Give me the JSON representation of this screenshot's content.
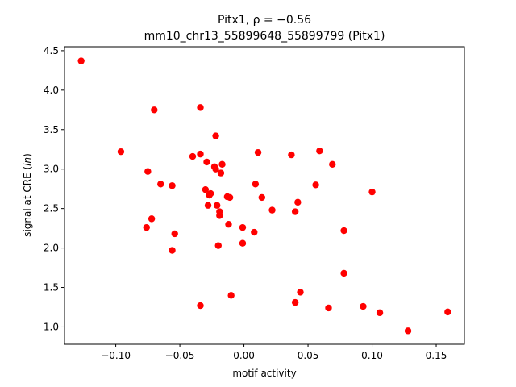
{
  "chart_data": {
    "type": "scatter",
    "title_line1": "Pitx1, ρ = −0.56",
    "title_line2": "mm10_chr13_55899648_55899799 (Pitx1)",
    "xlabel": "motif activity",
    "ylabel": "signal at CRE (ln)",
    "xlim": [
      -0.14,
      0.172
    ],
    "ylim": [
      0.78,
      4.55
    ],
    "xticks": [
      -0.1,
      -0.05,
      0.0,
      0.05,
      0.1,
      0.15
    ],
    "xtick_labels": [
      "−0.10",
      "−0.05",
      "0.00",
      "0.05",
      "0.10",
      "0.15"
    ],
    "yticks": [
      1.0,
      1.5,
      2.0,
      2.5,
      3.0,
      3.5,
      4.0,
      4.5
    ],
    "ytick_labels": [
      "1.0",
      "1.5",
      "2.0",
      "2.5",
      "3.0",
      "3.5",
      "4.0",
      "4.5"
    ],
    "grid": false,
    "marker_color": "#ff0000",
    "points": [
      {
        "x": -0.127,
        "y": 4.37
      },
      {
        "x": -0.096,
        "y": 3.22
      },
      {
        "x": -0.07,
        "y": 3.75
      },
      {
        "x": -0.034,
        "y": 3.78
      },
      {
        "x": -0.075,
        "y": 2.97
      },
      {
        "x": -0.065,
        "y": 2.81
      },
      {
        "x": -0.056,
        "y": 2.79
      },
      {
        "x": -0.072,
        "y": 2.37
      },
      {
        "x": -0.076,
        "y": 2.26
      },
      {
        "x": -0.054,
        "y": 2.18
      },
      {
        "x": -0.056,
        "y": 1.97
      },
      {
        "x": -0.04,
        "y": 3.16
      },
      {
        "x": -0.034,
        "y": 3.19
      },
      {
        "x": -0.029,
        "y": 3.09
      },
      {
        "x": -0.023,
        "y": 3.03
      },
      {
        "x": -0.022,
        "y": 3.0
      },
      {
        "x": -0.017,
        "y": 3.06
      },
      {
        "x": -0.018,
        "y": 2.95
      },
      {
        "x": -0.022,
        "y": 3.42
      },
      {
        "x": -0.03,
        "y": 2.74
      },
      {
        "x": -0.026,
        "y": 2.69
      },
      {
        "x": -0.027,
        "y": 2.67
      },
      {
        "x": -0.013,
        "y": 2.65
      },
      {
        "x": -0.011,
        "y": 2.64
      },
      {
        "x": -0.028,
        "y": 2.54
      },
      {
        "x": -0.021,
        "y": 2.54
      },
      {
        "x": -0.019,
        "y": 2.46
      },
      {
        "x": -0.019,
        "y": 2.41
      },
      {
        "x": -0.012,
        "y": 2.3
      },
      {
        "x": -0.02,
        "y": 2.03
      },
      {
        "x": -0.034,
        "y": 1.27
      },
      {
        "x": -0.01,
        "y": 1.4
      },
      {
        "x": -0.001,
        "y": 2.26
      },
      {
        "x": -0.001,
        "y": 2.06
      },
      {
        "x": 0.008,
        "y": 2.2
      },
      {
        "x": 0.009,
        "y": 2.81
      },
      {
        "x": 0.011,
        "y": 3.21
      },
      {
        "x": 0.014,
        "y": 2.64
      },
      {
        "x": 0.022,
        "y": 2.48
      },
      {
        "x": 0.037,
        "y": 3.18
      },
      {
        "x": 0.04,
        "y": 2.46
      },
      {
        "x": 0.042,
        "y": 2.58
      },
      {
        "x": 0.056,
        "y": 2.8
      },
      {
        "x": 0.059,
        "y": 3.23
      },
      {
        "x": 0.069,
        "y": 3.06
      },
      {
        "x": 0.044,
        "y": 1.44
      },
      {
        "x": 0.04,
        "y": 1.31
      },
      {
        "x": 0.066,
        "y": 1.24
      },
      {
        "x": 0.078,
        "y": 2.22
      },
      {
        "x": 0.078,
        "y": 1.68
      },
      {
        "x": 0.1,
        "y": 2.71
      },
      {
        "x": 0.093,
        "y": 1.26
      },
      {
        "x": 0.106,
        "y": 1.18
      },
      {
        "x": 0.128,
        "y": 0.95
      },
      {
        "x": 0.159,
        "y": 1.19
      }
    ]
  }
}
